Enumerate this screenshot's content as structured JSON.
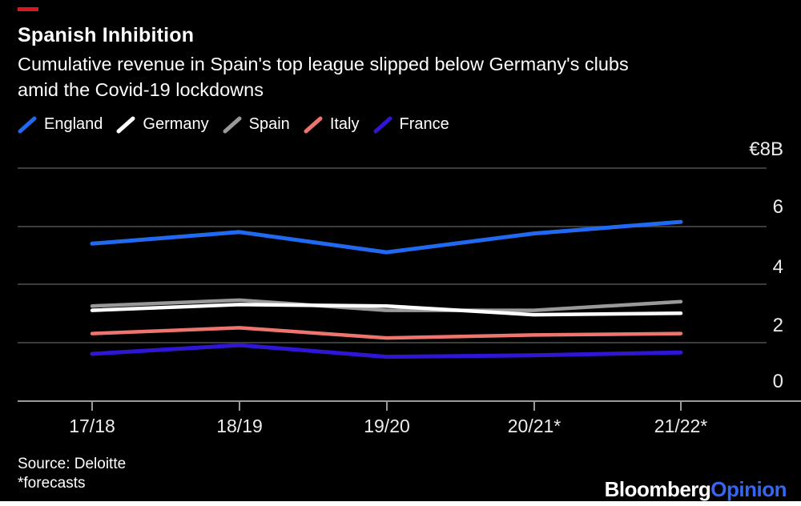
{
  "page": {
    "background_color": "#000000",
    "accent_dash_color": "#d8191f",
    "bottom_bar_color": "#ffffff"
  },
  "header": {
    "title": "Spanish Inhibition",
    "subtitle_line1": "Cumulative revenue in Spain's top league slipped below Germany's clubs",
    "subtitle_line2": "amid the Covid-19 lockdowns"
  },
  "legend": {
    "items": [
      {
        "label": "England",
        "color": "#2169f0"
      },
      {
        "label": "Germany",
        "color": "#ffffff"
      },
      {
        "label": "Spain",
        "color": "#999999"
      },
      {
        "label": "Italy",
        "color": "#ee756e"
      },
      {
        "label": "France",
        "color": "#2f16d5"
      }
    ]
  },
  "chart_data": {
    "type": "line",
    "title": "Spanish Inhibition",
    "subtitle": "Cumulative revenue in Spain's top league slipped below Germany's clubs amid the Covid-19 lockdowns",
    "unit": "€B",
    "categories": [
      "17/18",
      "18/19",
      "19/20",
      "20/21*",
      "21/22*"
    ],
    "series": [
      {
        "name": "England",
        "color": "#2169f0",
        "stroke_width": 5,
        "values": [
          5.4,
          5.8,
          5.1,
          5.75,
          6.15
        ]
      },
      {
        "name": "Germany",
        "color": "#ffffff",
        "stroke_width": 4.5,
        "values": [
          3.1,
          3.3,
          3.25,
          2.95,
          3.0
        ]
      },
      {
        "name": "Spain",
        "color": "#999999",
        "stroke_width": 4.5,
        "values": [
          3.25,
          3.45,
          3.1,
          3.1,
          3.4
        ]
      },
      {
        "name": "Italy",
        "color": "#ee756e",
        "stroke_width": 4.5,
        "values": [
          2.3,
          2.5,
          2.15,
          2.25,
          2.3
        ]
      },
      {
        "name": "France",
        "color": "#2f16d5",
        "stroke_width": 5,
        "values": [
          1.6,
          1.9,
          1.5,
          1.55,
          1.65
        ]
      }
    ],
    "ylim": [
      0,
      8
    ],
    "yticks": [
      8,
      6,
      4,
      2,
      0
    ],
    "grid": true,
    "legend_position": "top"
  },
  "axis": {
    "y_tick_labels": [
      "€8B",
      "6",
      "4",
      "2",
      "0"
    ],
    "x_tick_labels": [
      "17/18",
      "18/19",
      "19/20",
      "20/21*",
      "21/22*"
    ]
  },
  "footer": {
    "source_line1": "Source: Deloitte",
    "source_line2": "*forecasts",
    "brand_primary": "Bloomberg",
    "brand_secondary": "Opinion"
  }
}
